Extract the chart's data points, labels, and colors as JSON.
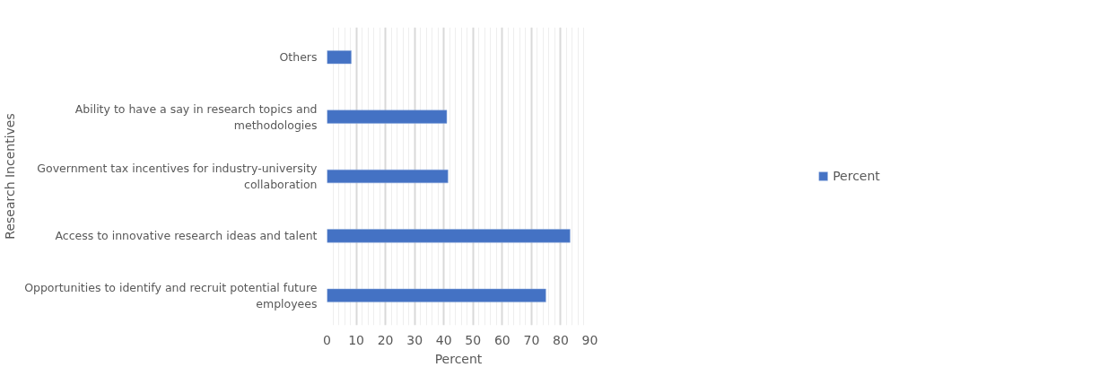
{
  "chart_data": {
    "type": "bar",
    "orientation": "horizontal",
    "xlabel": "Percent",
    "ylabel": "Research Incentives",
    "categories": [
      "Others",
      "Ability to have a say in research topics and methodologies",
      "Government tax incentives for industry-university collaboration",
      "Access to innovative research ideas and talent",
      "Opportunities to identify and recruit potential future employees"
    ],
    "series": [
      {
        "name": "Percent",
        "color": "#4472c4",
        "values": [
          8.3,
          41.0,
          41.4,
          83.2,
          74.9
        ]
      }
    ],
    "xlim": [
      0,
      90
    ],
    "xticks": [
      0,
      10,
      20,
      30,
      40,
      50,
      60,
      70,
      80,
      90
    ],
    "grid": "x",
    "legend": "right"
  }
}
